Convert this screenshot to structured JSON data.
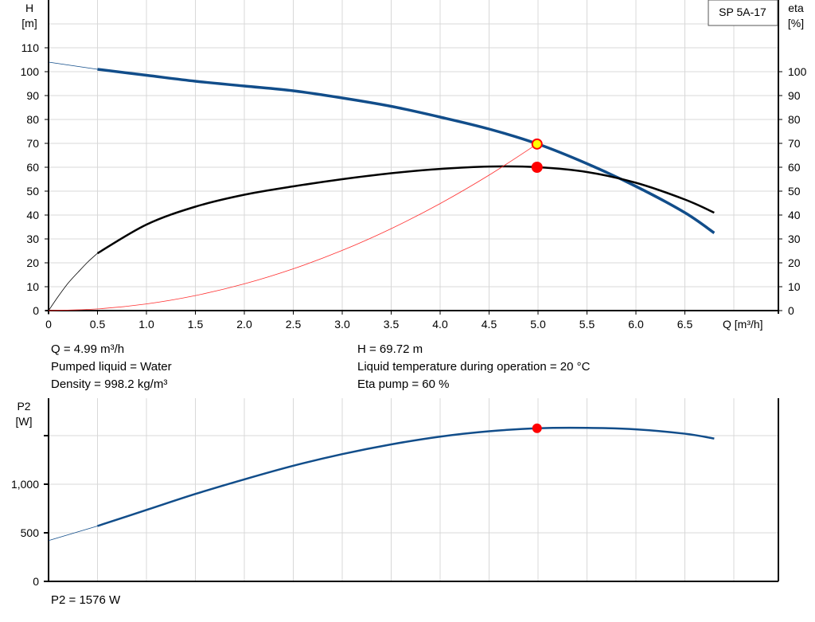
{
  "chart_data": [
    {
      "type": "line",
      "legend": "SP 5A-17",
      "xlabel": "Q [m³/h]",
      "ylabel_left": [
        "H",
        "[m]"
      ],
      "ylabel_right": [
        "eta",
        "[%]"
      ],
      "xlim": [
        0,
        7.45
      ],
      "ylim_left": [
        0,
        130
      ],
      "ylim_right": [
        0,
        130
      ],
      "grid": true,
      "x_ticks": [
        "0",
        "0.5",
        "1.0",
        "1.5",
        "2.0",
        "2.5",
        "3.0",
        "3.5",
        "4.0",
        "4.5",
        "5.0",
        "5.5",
        "6.0",
        "6.5"
      ],
      "y_ticks_left": [
        "0",
        "10",
        "20",
        "30",
        "40",
        "50",
        "60",
        "70",
        "80",
        "90",
        "100",
        "110"
      ],
      "y_ticks_right": [
        "0",
        "10",
        "20",
        "30",
        "40",
        "50",
        "60",
        "70",
        "80",
        "90",
        "100"
      ],
      "series": [
        {
          "id": "H",
          "color": "#114d8a",
          "x": [
            0.5,
            1.0,
            1.5,
            2.0,
            2.5,
            3.0,
            3.5,
            4.0,
            4.5,
            5.0,
            5.5,
            6.0,
            6.5,
            6.8
          ],
          "y": [
            101,
            98.5,
            96,
            94,
            92,
            89,
            85.5,
            81,
            76,
            69.7,
            61.5,
            52,
            41,
            32.5
          ],
          "extrapolated": {
            "x": [
              0,
              0.5
            ],
            "y": [
              104,
              101
            ]
          }
        },
        {
          "id": "eta",
          "color": "#000000",
          "x": [
            0.5,
            1.0,
            1.5,
            2.0,
            2.5,
            3.0,
            3.5,
            4.0,
            4.5,
            5.0,
            5.5,
            6.0,
            6.5,
            6.8
          ],
          "y": [
            24,
            36,
            43.5,
            48.5,
            52,
            55,
            57.5,
            59.3,
            60.3,
            60,
            58,
            53.5,
            46.5,
            41
          ],
          "extrapolated": {
            "x": [
              0,
              0.1,
              0.2,
              0.3,
              0.4,
              0.5
            ],
            "y": [
              0,
              6,
              11.5,
              16,
              20.3,
              24
            ]
          }
        },
        {
          "id": "system",
          "color": "#ff3030",
          "x": [
            0,
            0.5,
            1.0,
            1.5,
            2.0,
            2.5,
            3.0,
            3.5,
            4.0,
            4.5,
            4.99
          ],
          "y": [
            0,
            0.7,
            2.8,
            6.3,
            11.2,
            17.5,
            25.2,
            34.3,
            44.8,
            56.7,
            69.72
          ]
        }
      ],
      "operating_points": [
        {
          "x": 4.99,
          "y": 69.72,
          "fill": "#ffff00",
          "stroke": "#ff0000"
        },
        {
          "x": 4.99,
          "y": 60,
          "fill": "#ff0000",
          "stroke": "#ff0000"
        }
      ]
    },
    {
      "type": "line",
      "ylabel": [
        "P2",
        "[W]"
      ],
      "xlim": [
        0,
        7.45
      ],
      "ylim": [
        0,
        1885
      ],
      "grid": true,
      "y_ticks": [
        {
          "v": 0,
          "label": "0"
        },
        {
          "v": 500,
          "label": "500"
        },
        {
          "v": 1000,
          "label": "1,000"
        },
        {
          "v": 1500,
          "label": ""
        }
      ],
      "series": [
        {
          "id": "P2",
          "color": "#114d8a",
          "x": [
            0.5,
            1.0,
            1.5,
            2.0,
            2.5,
            3.0,
            3.5,
            4.0,
            4.5,
            5.0,
            5.5,
            6.0,
            6.5,
            6.8
          ],
          "y": [
            570,
            735,
            900,
            1050,
            1190,
            1310,
            1410,
            1490,
            1545,
            1576,
            1580,
            1565,
            1520,
            1470
          ],
          "extrapolated": {
            "x": [
              0,
              0.5
            ],
            "y": [
              420,
              570
            ]
          }
        }
      ],
      "operating_points": [
        {
          "x": 4.99,
          "y": 1576,
          "fill": "#ff0000",
          "stroke": "#ff0000"
        }
      ]
    }
  ],
  "info": {
    "q": "Q = 4.99 m³/h",
    "liquid": "Pumped liquid = Water",
    "density": "Density = 998.2 kg/m³",
    "h": "H = 69.72 m",
    "temp": "Liquid temperature during operation = 20 °C",
    "eta": "Eta pump = 60 %",
    "p2": "P2 = 1576 W"
  }
}
